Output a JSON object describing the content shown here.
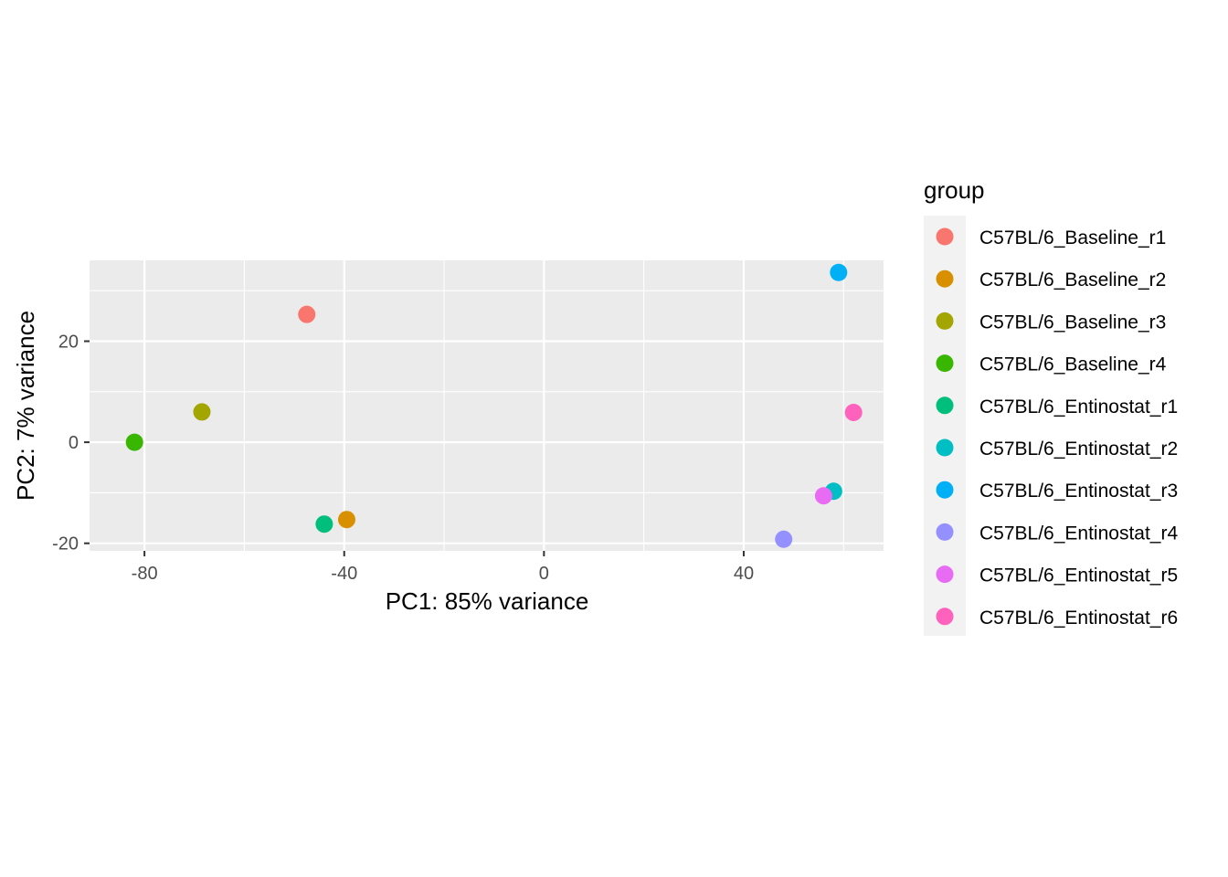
{
  "chart_data": {
    "type": "scatter",
    "xlabel": "PC1: 85% variance",
    "ylabel": "PC2: 7% variance",
    "xlim": [
      -91,
      68
    ],
    "ylim": [
      -21.5,
      36
    ],
    "x_ticks": [
      -80,
      -40,
      0,
      40
    ],
    "y_ticks": [
      -20,
      0,
      20
    ],
    "grid": true,
    "legend": {
      "title": "group",
      "position": "right"
    },
    "series": [
      {
        "name": "C57BL/6_Baseline_r1",
        "color": "#F8766D",
        "x": -47.5,
        "y": 25.3
      },
      {
        "name": "C57BL/6_Baseline_r2",
        "color": "#D89000",
        "x": -39.5,
        "y": -15.3
      },
      {
        "name": "C57BL/6_Baseline_r3",
        "color": "#A3A500",
        "x": -68.5,
        "y": 6.0
      },
      {
        "name": "C57BL/6_Baseline_r4",
        "color": "#39B600",
        "x": -82.0,
        "y": 0.0
      },
      {
        "name": "C57BL/6_Entinostat_r1",
        "color": "#00BF7D",
        "x": -44.0,
        "y": -16.2
      },
      {
        "name": "C57BL/6_Entinostat_r2",
        "color": "#00BFC4",
        "x": 58.0,
        "y": -9.7
      },
      {
        "name": "C57BL/6_Entinostat_r3",
        "color": "#00B0F6",
        "x": 59.0,
        "y": 33.6
      },
      {
        "name": "C57BL/6_Entinostat_r4",
        "color": "#9590FF",
        "x": 48.0,
        "y": -19.2
      },
      {
        "name": "C57BL/6_Entinostat_r5",
        "color": "#E76BF3",
        "x": 56.0,
        "y": -10.6
      },
      {
        "name": "C57BL/6_Entinostat_r6",
        "color": "#FF62BC",
        "x": 62.0,
        "y": 5.9
      }
    ]
  }
}
